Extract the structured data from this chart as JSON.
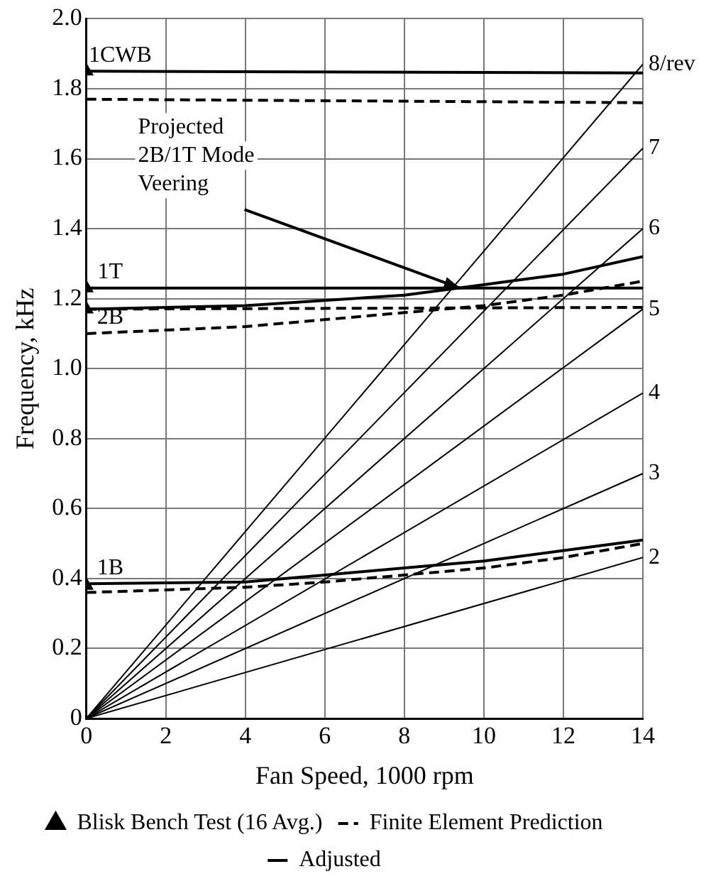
{
  "chart_data": {
    "type": "line",
    "xlabel": "Fan Speed, 1000 rpm",
    "ylabel": "Frequency, kHz",
    "xlim": [
      0,
      14
    ],
    "xticks": [
      0,
      2,
      4,
      6,
      8,
      10,
      12,
      14
    ],
    "ylim": [
      0,
      2
    ],
    "yticks": [
      0,
      0.2,
      0.4,
      0.6,
      0.8,
      {
        "value": 1,
        "label": "1.0"
      },
      1.2,
      1.4,
      1.6,
      1.8,
      {
        "value": 2,
        "label": "2.0"
      }
    ],
    "grid": true,
    "legend": "bottom",
    "series": [
      {
        "name": "Blisk Bench Test (16 Avg.)",
        "type": "scatter",
        "marker": "triangle",
        "color": "#000000",
        "x": [
          0,
          0,
          0,
          0
        ],
        "values": [
          1.85,
          1.23,
          1.17,
          0.38
        ]
      },
      {
        "name": "Finite Element Prediction",
        "line_style": "dashed",
        "color": "#000000",
        "x": [
          0,
          14
        ],
        "values": [
          1.77,
          1.76
        ]
      },
      {
        "name": "Adjusted",
        "line_style": "solid",
        "color": "#000000",
        "x": [
          0,
          14
        ],
        "values": [
          1.85,
          1.845
        ]
      },
      {
        "type": "line",
        "line_style": "dashed",
        "color": "#000000",
        "x": [
          0,
          14
        ],
        "values": [
          1.17,
          1.175
        ]
      },
      {
        "type": "line",
        "line_style": "solid",
        "color": "#000000",
        "x": [
          0,
          14
        ],
        "values": [
          1.23,
          1.23
        ]
      },
      {
        "type": "line",
        "line_style": "dashed",
        "color": "#000000",
        "x": [
          0,
          4,
          8,
          10,
          12,
          14
        ],
        "values": [
          1.1,
          1.12,
          1.16,
          1.18,
          1.21,
          1.25
        ]
      },
      {
        "type": "line",
        "line_style": "solid",
        "color": "#000000",
        "x": [
          0,
          4,
          8,
          10,
          12,
          14
        ],
        "values": [
          1.17,
          1.18,
          1.21,
          1.24,
          1.27,
          1.32
        ]
      },
      {
        "type": "line",
        "line_style": "dashed",
        "color": "#000000",
        "x": [
          0,
          4,
          6,
          8,
          10,
          12,
          14
        ],
        "values": [
          0.36,
          0.375,
          0.39,
          0.41,
          0.43,
          0.46,
          0.5
        ]
      },
      {
        "type": "line",
        "line_style": "solid",
        "color": "#000000",
        "x": [
          0,
          4,
          6,
          8,
          10,
          12,
          14
        ],
        "values": [
          0.385,
          0.39,
          0.41,
          0.43,
          0.45,
          0.48,
          0.51
        ]
      },
      {
        "name": "8/rev",
        "type": "line",
        "color": "#000000",
        "x": [
          0,
          14
        ],
        "values": [
          0,
          1.87
        ]
      },
      {
        "name": "7",
        "type": "line",
        "color": "#000000",
        "x": [
          0,
          14
        ],
        "values": [
          0,
          1.63
        ]
      },
      {
        "name": "6",
        "type": "line",
        "color": "#000000",
        "x": [
          0,
          14
        ],
        "values": [
          0,
          1.4
        ]
      },
      {
        "name": "5",
        "type": "line",
        "color": "#000000",
        "x": [
          0,
          14
        ],
        "values": [
          0,
          1.17
        ]
      },
      {
        "name": "4",
        "type": "line",
        "color": "#000000",
        "x": [
          0,
          14
        ],
        "values": [
          0,
          0.93
        ]
      },
      {
        "name": "3",
        "type": "line",
        "color": "#000000",
        "x": [
          0,
          14
        ],
        "values": [
          0,
          0.7
        ]
      },
      {
        "name": "2",
        "type": "line",
        "color": "#000000",
        "x": [
          0,
          14
        ],
        "values": [
          0,
          0.46
        ]
      }
    ],
    "annotations": [
      {
        "text": "1CWB",
        "x": 0.85,
        "y": 1.85
      },
      {
        "text": "1T",
        "x": 0.6,
        "y": 1.23
      },
      {
        "text": "2B",
        "x": 0.6,
        "y": 1.1
      },
      {
        "text": "1B",
        "x": 0.6,
        "y": 0.385
      },
      {
        "text": "Projected 2B/1T Mode Veering",
        "x": 9.4,
        "y": 1.23
      }
    ]
  }
}
